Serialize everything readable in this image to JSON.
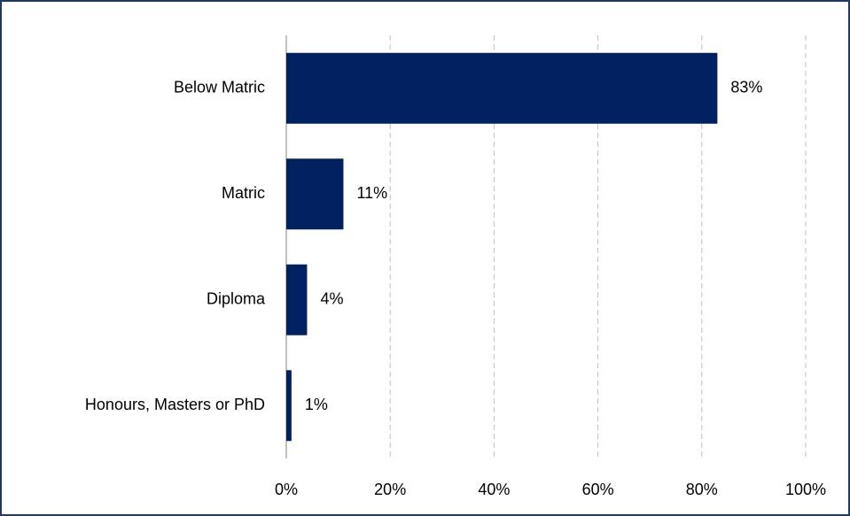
{
  "chart_data": {
    "type": "hbar",
    "categories": [
      "Below Matric",
      "Matric",
      "Diploma",
      "Honours, Masters or PhD"
    ],
    "values": [
      83,
      11,
      4,
      1
    ],
    "value_labels": [
      "83%",
      "11%",
      "4%",
      "1%"
    ],
    "color": "#002060",
    "xlim": [
      0,
      100
    ],
    "xticks": [
      {
        "value": 0,
        "label": "0%"
      },
      {
        "value": 20,
        "label": "20%"
      },
      {
        "value": 40,
        "label": "40%"
      },
      {
        "value": 60,
        "label": "60%"
      },
      {
        "value": 80,
        "label": "80%"
      },
      {
        "value": 100,
        "label": "100%"
      }
    ],
    "grid": true
  }
}
